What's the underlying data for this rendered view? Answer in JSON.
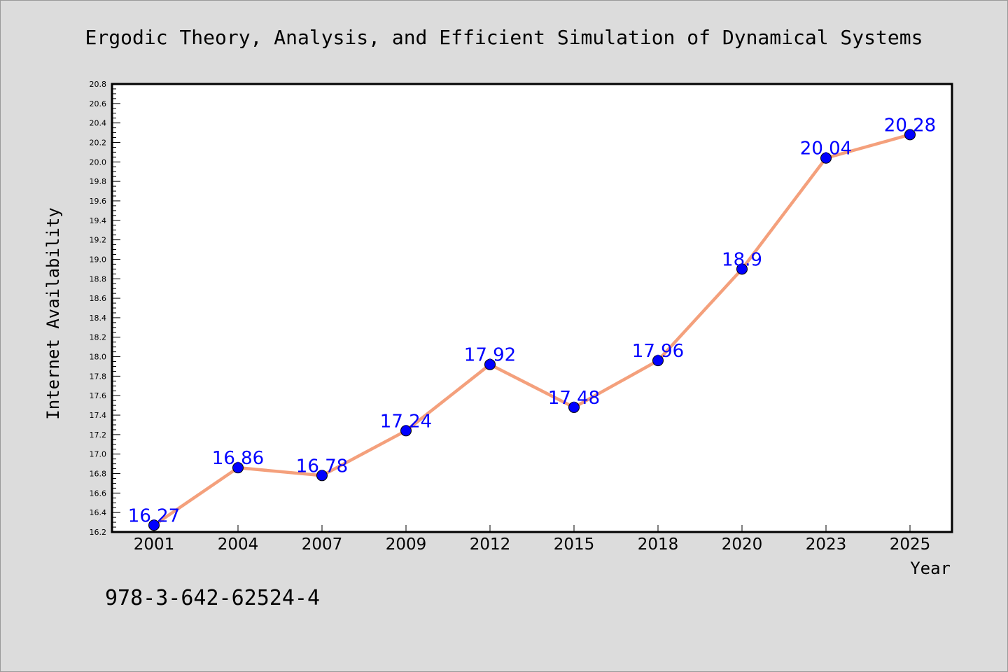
{
  "chart_data": {
    "type": "line",
    "title": "Ergodic Theory, Analysis, and Efficient Simulation of Dynamical Systems",
    "xlabel": "Year",
    "ylabel": "Internet Availability",
    "categories": [
      "2001",
      "2004",
      "2007",
      "2009",
      "2012",
      "2015",
      "2018",
      "2020",
      "2023",
      "2025"
    ],
    "series": [
      {
        "values": [
          16.27,
          16.86,
          16.78,
          17.24,
          17.92,
          17.48,
          17.96,
          18.9,
          20.04,
          20.28
        ]
      }
    ],
    "data_labels": [
      "16.27",
      "16.86",
      "16.78",
      "17.24",
      "17.92",
      "17.48",
      "17.96",
      "18.9",
      "20.04",
      "20.28"
    ],
    "ylim": [
      16.2,
      20.8
    ],
    "yticks": [
      "16.2",
      "16.4",
      "16.6",
      "16.8",
      "17.0",
      "17.2",
      "17.4",
      "17.6",
      "17.8",
      "18.0",
      "18.2",
      "18.4",
      "18.6",
      "18.8",
      "19.0",
      "19.2",
      "19.4",
      "19.6",
      "19.8",
      "20.0",
      "20.2",
      "20.4",
      "20.6",
      "20.8"
    ],
    "grid": false,
    "colors": {
      "line": "#f4a07c",
      "marker": "#0000ff",
      "label": "#0000ff",
      "background": "#dcdcdc",
      "plot_background": "#ffffff"
    }
  },
  "footer_text": "978-3-642-62524-4"
}
